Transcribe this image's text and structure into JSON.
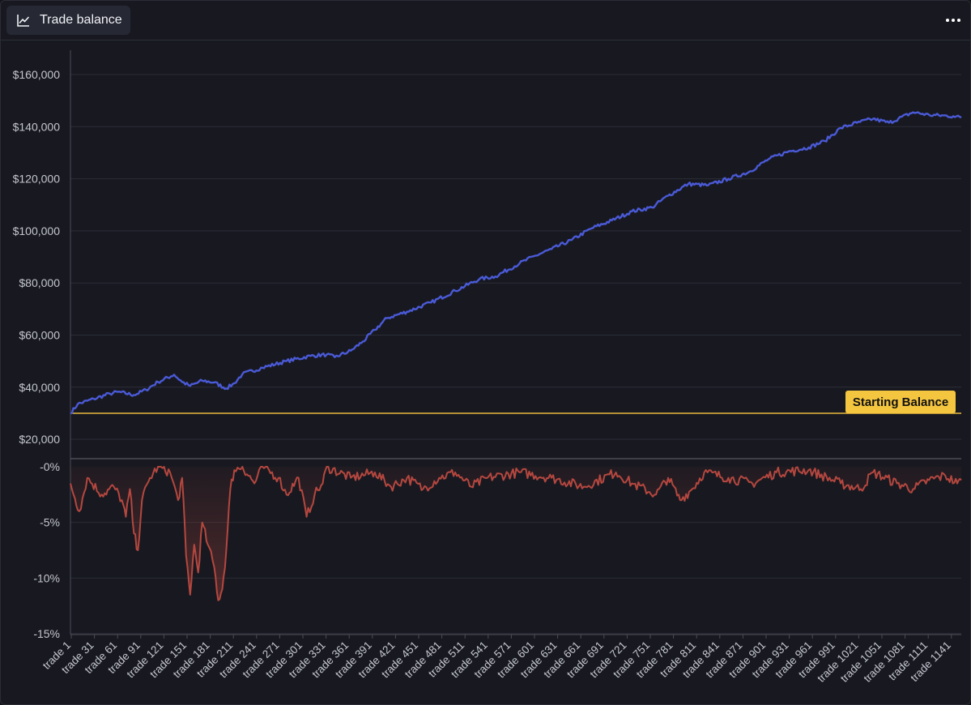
{
  "header": {
    "title": "Trade balance",
    "title_icon": "line-chart-icon",
    "menu_icon": "more-horizontal-icon"
  },
  "colors": {
    "background": "#181920",
    "balance_line": "#4a5ad8",
    "drawdown_line": "#b5473f",
    "starting_line": "#e8b83c",
    "grid": "#2a2c36"
  },
  "chart_data": [
    {
      "type": "line",
      "panel": "balance",
      "yticks": [
        "$20,000",
        "$40,000",
        "$60,000",
        "$80,000",
        "$100,000",
        "$120,000",
        "$140,000",
        "$160,000"
      ],
      "ytick_values": [
        20000,
        40000,
        60000,
        80000,
        100000,
        120000,
        140000,
        160000
      ],
      "ylim": [
        13000,
        170000
      ],
      "series": [
        {
          "points": [
            [
              1,
              30000
            ],
            [
              10,
              33500
            ],
            [
              30,
              35500
            ],
            [
              50,
              37500
            ],
            [
              60,
              38200
            ],
            [
              80,
              37000
            ],
            [
              95,
              39000
            ],
            [
              110,
              42000
            ],
            [
              130,
              44800
            ],
            [
              140,
              42000
            ],
            [
              150,
              40500
            ],
            [
              165,
              42500
            ],
            [
              180,
              41800
            ],
            [
              195,
              39500
            ],
            [
              205,
              41500
            ],
            [
              215,
              45000
            ],
            [
              240,
              47500
            ],
            [
              270,
              50000
            ],
            [
              300,
              52000
            ],
            [
              320,
              52500
            ],
            [
              330,
              51500
            ],
            [
              350,
              54000
            ],
            [
              365,
              57500
            ],
            [
              380,
              62000
            ],
            [
              395,
              66500
            ],
            [
              420,
              69000
            ],
            [
              450,
              72500
            ],
            [
              480,
              77000
            ],
            [
              510,
              81500
            ],
            [
              530,
              82500
            ],
            [
              560,
              87500
            ],
            [
              580,
              90500
            ],
            [
              600,
              93000
            ],
            [
              625,
              96500
            ],
            [
              650,
              101000
            ],
            [
              675,
              104000
            ],
            [
              700,
              107500
            ],
            [
              725,
              109000
            ],
            [
              745,
              113500
            ],
            [
              770,
              118000
            ],
            [
              795,
              117500
            ],
            [
              820,
              120000
            ],
            [
              845,
              122500
            ],
            [
              870,
              127500
            ],
            [
              895,
              130500
            ],
            [
              920,
              132000
            ],
            [
              940,
              134500
            ],
            [
              960,
              139500
            ],
            [
              980,
              141500
            ],
            [
              1000,
              143000
            ],
            [
              1020,
              141500
            ],
            [
              1050,
              145500
            ],
            [
              1070,
              144500
            ],
            [
              1100,
              144000
            ],
            [
              1110,
              143500
            ]
          ]
        }
      ],
      "annotations": [
        {
          "label": "Starting Balance",
          "value": 30000
        }
      ]
    },
    {
      "type": "line",
      "panel": "drawdown",
      "yticks": [
        "-0%",
        "-5%",
        "-10%",
        "-15%"
      ],
      "ytick_values": [
        0,
        -5,
        -10,
        -15
      ],
      "ylim": [
        -15,
        0
      ],
      "series": [
        {
          "points": [
            [
              1,
              -1.5
            ],
            [
              12,
              -4
            ],
            [
              22,
              -1
            ],
            [
              40,
              -2.5
            ],
            [
              55,
              -1.8
            ],
            [
              65,
              -3
            ],
            [
              70,
              -4.5
            ],
            [
              75,
              -2
            ],
            [
              80,
              -6
            ],
            [
              85,
              -7.5
            ],
            [
              90,
              -3
            ],
            [
              100,
              -1
            ],
            [
              110,
              0
            ],
            [
              125,
              -0.5
            ],
            [
              135,
              -3
            ],
            [
              140,
              -1
            ],
            [
              145,
              -8
            ],
            [
              150,
              -11.5
            ],
            [
              155,
              -7
            ],
            [
              160,
              -9.5
            ],
            [
              165,
              -5
            ],
            [
              172,
              -7
            ],
            [
              180,
              -9
            ],
            [
              185,
              -12
            ],
            [
              190,
              -11
            ],
            [
              195,
              -7.5
            ],
            [
              200,
              -2
            ],
            [
              205,
              -0.3
            ],
            [
              215,
              0
            ],
            [
              230,
              -1.5
            ],
            [
              240,
              0
            ],
            [
              260,
              -1
            ],
            [
              270,
              -2.5
            ],
            [
              285,
              -1
            ],
            [
              295,
              -4.5
            ],
            [
              305,
              -2.5
            ],
            [
              315,
              -1.5
            ],
            [
              320,
              0
            ],
            [
              350,
              -1
            ],
            [
              380,
              -0.5
            ],
            [
              400,
              -1.8
            ],
            [
              420,
              -1
            ],
            [
              440,
              -2
            ],
            [
              460,
              -1
            ],
            [
              480,
              -0.5
            ],
            [
              500,
              -1.8
            ],
            [
              520,
              -1
            ],
            [
              560,
              -0.5
            ],
            [
              600,
              -1
            ],
            [
              640,
              -1.8
            ],
            [
              680,
              -0.5
            ],
            [
              700,
              -1.5
            ],
            [
              730,
              -2.5
            ],
            [
              745,
              -1
            ],
            [
              760,
              -3
            ],
            [
              775,
              -2
            ],
            [
              790,
              -0.5
            ],
            [
              820,
              -1
            ],
            [
              850,
              -1.5
            ],
            [
              880,
              -0.5
            ],
            [
              920,
              -0.3
            ],
            [
              960,
              -1.5
            ],
            [
              985,
              -2
            ],
            [
              1000,
              -0.5
            ],
            [
              1030,
              -1.5
            ],
            [
              1050,
              -2
            ],
            [
              1070,
              -1.2
            ],
            [
              1090,
              -0.8
            ],
            [
              1105,
              -1.5
            ],
            [
              1110,
              -1.2
            ]
          ]
        }
      ],
      "xlabels": [
        "trade 1",
        "trade 31",
        "trade 61",
        "trade 91",
        "trade 121",
        "trade 151",
        "trade 181",
        "trade 211",
        "trade 241",
        "trade 271",
        "trade 301",
        "trade 331",
        "trade 361",
        "trade 391",
        "trade 421",
        "trade 451",
        "trade 481",
        "trade 511",
        "trade 541",
        "trade 571",
        "trade 601",
        "trade 631",
        "trade 661",
        "trade 691",
        "trade 721",
        "trade 751",
        "trade 781",
        "trade 811",
        "trade 841",
        "trade 871",
        "trade 901",
        "trade 931",
        "trade 961",
        "trade 991",
        "trade 1021",
        "trade 1051",
        "trade 1081",
        "trade 1111",
        "trade 1141"
      ]
    }
  ]
}
